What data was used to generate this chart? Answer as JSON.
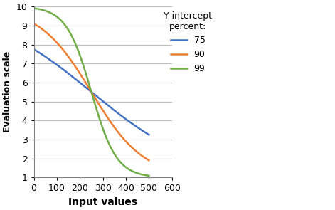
{
  "title": "",
  "xlabel": "Input values",
  "ylabel": "Evaluation scale",
  "xlim": [
    0,
    600
  ],
  "ylim": [
    1,
    10
  ],
  "xticks": [
    0,
    100,
    200,
    300,
    400,
    500,
    600
  ],
  "yticks": [
    1,
    2,
    3,
    4,
    5,
    6,
    7,
    8,
    9,
    10
  ],
  "x_max": 500,
  "y_min": 1,
  "y_max": 10,
  "curves": [
    {
      "label": "75",
      "color": "#4472C4",
      "percent": 0.75,
      "k": 0.012,
      "x0": 250
    },
    {
      "label": "90",
      "color": "#ED7D31",
      "percent": 0.9,
      "k": 0.014,
      "x0": 240
    },
    {
      "label": "99",
      "color": "#70AD47",
      "percent": 0.99,
      "k": 0.022,
      "x0": 230
    }
  ],
  "legend_title": "Y intercept\npercent:",
  "grid_color": "#C0C0C0",
  "background_color": "#FFFFFF",
  "line_width": 1.8,
  "xlabel_fontsize": 10,
  "ylabel_fontsize": 9,
  "legend_fontsize": 9,
  "tick_fontsize": 9
}
